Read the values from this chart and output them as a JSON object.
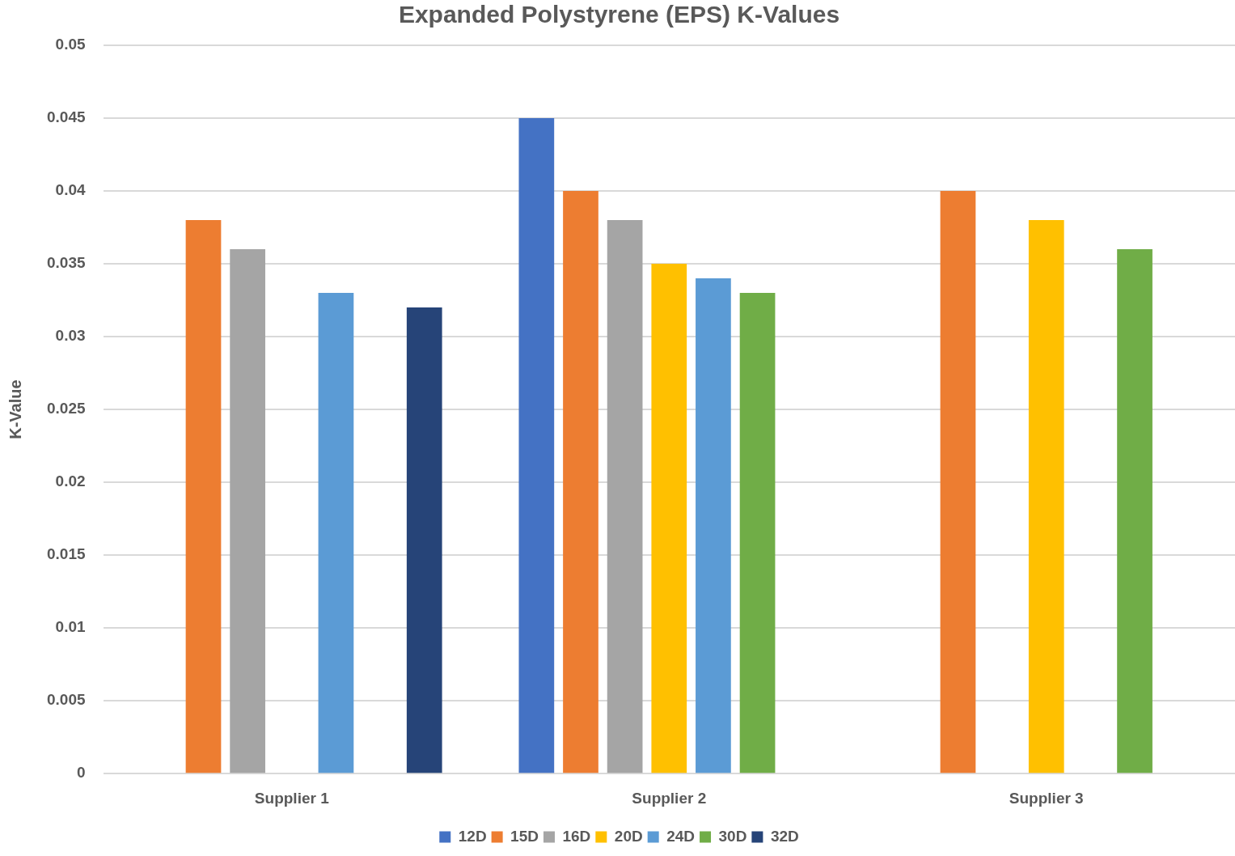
{
  "chart_data": {
    "type": "bar",
    "title": "Expanded Polystyrene (EPS) K-Values",
    "ylabel": "K-Value",
    "categories": [
      "Supplier 1",
      "Supplier 2",
      "Supplier 3"
    ],
    "series": [
      {
        "name": "12D",
        "color": "#4472c4",
        "values": [
          null,
          0.045,
          null
        ]
      },
      {
        "name": "15D",
        "color": "#ed7d31",
        "values": [
          0.038,
          0.04,
          0.04
        ]
      },
      {
        "name": "16D",
        "color": "#a5a5a5",
        "values": [
          0.036,
          0.038,
          null
        ]
      },
      {
        "name": "20D",
        "color": "#ffc000",
        "values": [
          null,
          0.035,
          0.038
        ]
      },
      {
        "name": "24D",
        "color": "#5b9bd5",
        "values": [
          0.033,
          0.034,
          null
        ]
      },
      {
        "name": "30D",
        "color": "#70ad47",
        "values": [
          null,
          0.033,
          0.036
        ]
      },
      {
        "name": "32D",
        "color": "#264478",
        "values": [
          0.032,
          null,
          null
        ]
      }
    ],
    "ylim": [
      0,
      0.05
    ],
    "yticks": [
      0,
      0.005,
      0.01,
      0.015,
      0.02,
      0.025,
      0.03,
      0.035,
      0.04,
      0.045,
      0.05
    ],
    "grid": "y",
    "legend": "bottom"
  }
}
